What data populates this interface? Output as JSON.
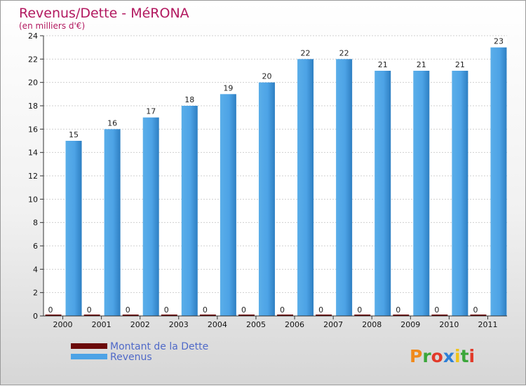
{
  "chart_data": {
    "type": "bar",
    "title": "Revenus/Dette - MéRONA",
    "subtitle": "(en milliers d'€)",
    "categories": [
      "2000",
      "2001",
      "2002",
      "2003",
      "2004",
      "2005",
      "2006",
      "2007",
      "2008",
      "2009",
      "2010",
      "2011"
    ],
    "series": [
      {
        "name": "Montant de la Dette",
        "color": "#6b0a0a",
        "values": [
          0,
          0,
          0,
          0,
          0,
          0,
          0,
          0,
          0,
          0,
          0,
          0
        ]
      },
      {
        "name": "Revenus",
        "color": "#4da3e6",
        "values": [
          15,
          16,
          17,
          18,
          19,
          20,
          22,
          22,
          21,
          21,
          21,
          23
        ]
      }
    ],
    "ylim": [
      0,
      24
    ],
    "yticks": [
      0,
      2,
      4,
      6,
      8,
      10,
      12,
      14,
      16,
      18,
      20,
      22,
      24
    ],
    "grid": true,
    "legend_position": "bottom-left"
  },
  "brand": {
    "letters": [
      "P",
      "r",
      "o",
      "x",
      "i",
      "t",
      "i"
    ],
    "colors": [
      "#f08a1c",
      "#3aa63a",
      "#e23a2a",
      "#2e7fd6",
      "#f0c419",
      "#3aa63a",
      "#e23a2a"
    ]
  }
}
